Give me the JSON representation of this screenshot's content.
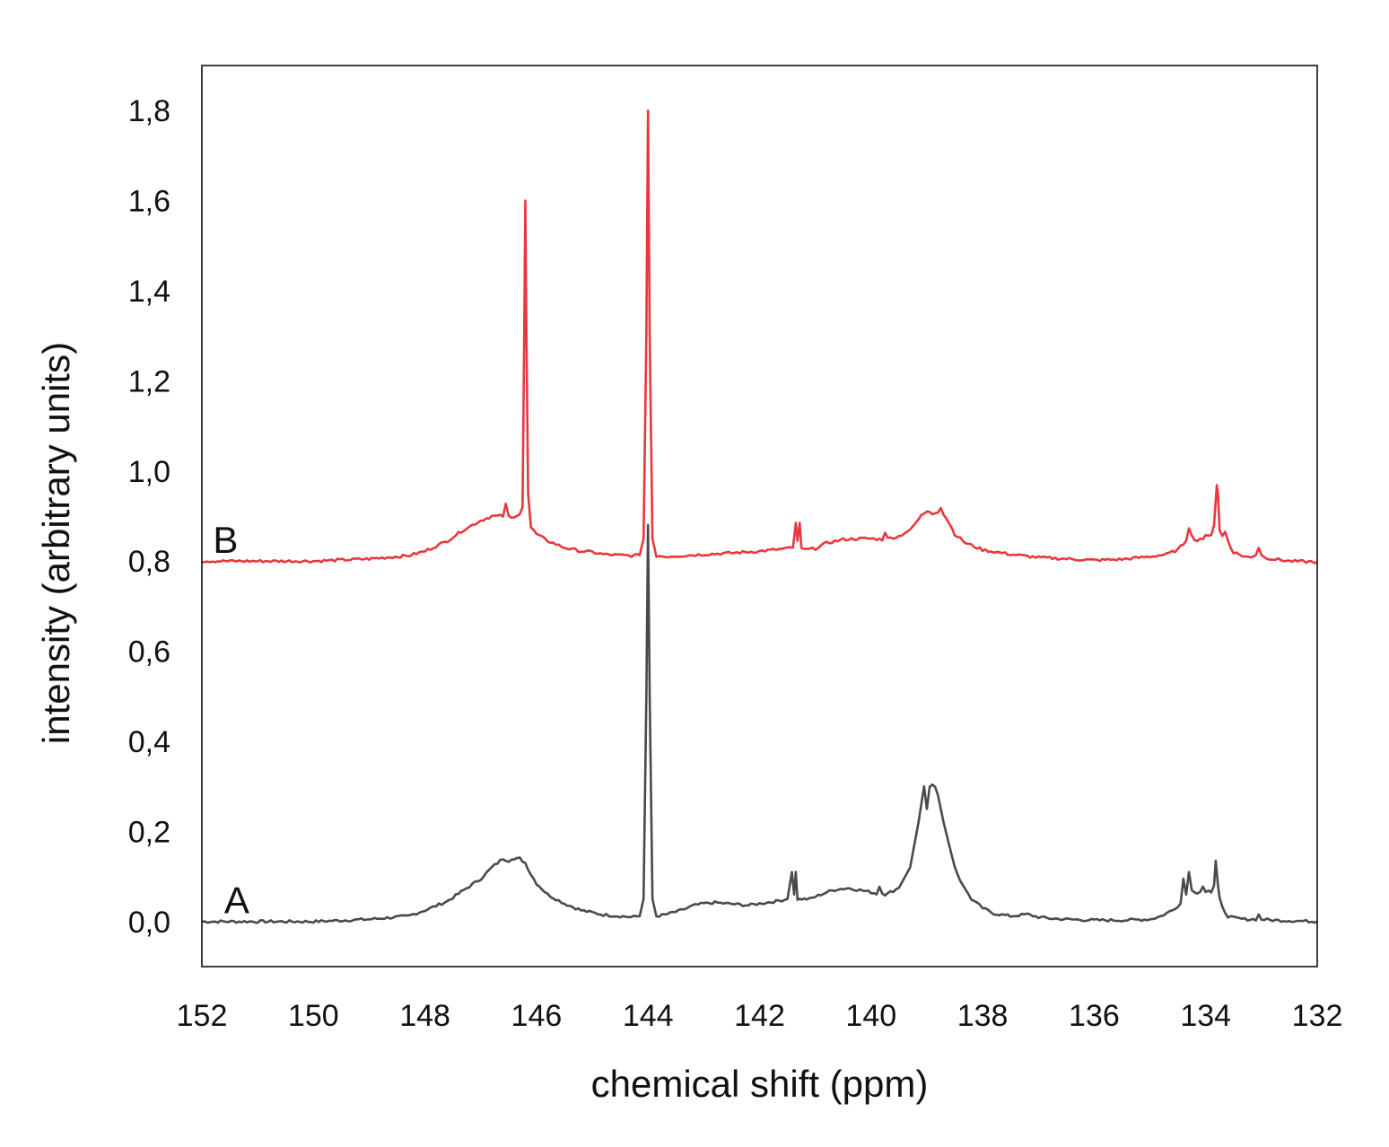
{
  "chart_data": {
    "type": "line",
    "title": "",
    "xlabel": "chemical shift (ppm)",
    "ylabel": "intensity (arbitrary units)",
    "xlim": [
      152,
      132
    ],
    "ylim": [
      -0.1,
      1.9
    ],
    "x_reversed": true,
    "x_ticks": [
      152,
      150,
      148,
      146,
      144,
      142,
      140,
      138,
      136,
      134,
      132
    ],
    "x_tick_labels": [
      "152",
      "150",
      "148",
      "146",
      "144",
      "142",
      "140",
      "138",
      "136",
      "134",
      "132"
    ],
    "y_ticks": [
      0.0,
      0.2,
      0.4,
      0.6,
      0.8,
      1.0,
      1.2,
      1.4,
      1.6,
      1.8
    ],
    "y_tick_labels": [
      "0,0",
      "0,2",
      "0,4",
      "0,6",
      "0,8",
      "1,0",
      "1,2",
      "1,4",
      "1,6",
      "1,8"
    ],
    "grid": false,
    "legend": "none",
    "series": [
      {
        "label_text": "A",
        "label_x": 151.6,
        "label_y": 0.03,
        "color": "#4a4a4a",
        "x": [
          152.0,
          151.0,
          150.0,
          149.0,
          148.3,
          148.0,
          147.6,
          147.3,
          147.0,
          146.8,
          146.6,
          146.5,
          146.45,
          146.4,
          146.3,
          146.2,
          146.1,
          146.0,
          145.8,
          145.5,
          145.2,
          145.0,
          144.8,
          144.5,
          144.3,
          144.15,
          144.08,
          144.03,
          144.0,
          143.97,
          143.92,
          143.85,
          143.7,
          143.4,
          143.2,
          143.0,
          142.8,
          142.6,
          142.4,
          142.2,
          142.0,
          141.7,
          141.5,
          141.42,
          141.38,
          141.35,
          141.32,
          141.28,
          141.2,
          141.1,
          141.0,
          140.8,
          140.6,
          140.4,
          140.2,
          140.0,
          139.9,
          139.85,
          139.8,
          139.75,
          139.7,
          139.5,
          139.3,
          139.15,
          139.05,
          139.0,
          138.95,
          138.9,
          138.85,
          138.8,
          138.7,
          138.6,
          138.5,
          138.4,
          138.2,
          138.0,
          137.8,
          137.5,
          137.2,
          137.0,
          136.8,
          136.5,
          136.0,
          135.5,
          135.0,
          134.8,
          134.6,
          134.45,
          134.4,
          134.35,
          134.3,
          134.25,
          134.2,
          134.1,
          134.05,
          134.0,
          133.95,
          133.9,
          133.85,
          133.82,
          133.78,
          133.75,
          133.7,
          133.6,
          133.5,
          133.3,
          133.1,
          133.05,
          133.0,
          132.8,
          132.5,
          132.0
        ],
        "y": [
          0.0,
          0.0,
          0.0,
          0.005,
          0.012,
          0.025,
          0.045,
          0.07,
          0.095,
          0.12,
          0.14,
          0.135,
          0.14,
          0.138,
          0.14,
          0.13,
          0.105,
          0.085,
          0.06,
          0.04,
          0.025,
          0.02,
          0.015,
          0.012,
          0.01,
          0.012,
          0.05,
          0.5,
          0.88,
          0.5,
          0.05,
          0.012,
          0.015,
          0.025,
          0.035,
          0.04,
          0.042,
          0.04,
          0.038,
          0.036,
          0.04,
          0.045,
          0.05,
          0.11,
          0.06,
          0.11,
          0.05,
          0.05,
          0.05,
          0.05,
          0.055,
          0.065,
          0.072,
          0.074,
          0.07,
          0.065,
          0.062,
          0.078,
          0.065,
          0.06,
          0.062,
          0.075,
          0.12,
          0.22,
          0.3,
          0.25,
          0.3,
          0.305,
          0.3,
          0.28,
          0.22,
          0.17,
          0.12,
          0.09,
          0.05,
          0.03,
          0.018,
          0.012,
          0.016,
          0.01,
          0.007,
          0.005,
          0.003,
          0.003,
          0.005,
          0.012,
          0.025,
          0.04,
          0.095,
          0.06,
          0.11,
          0.07,
          0.065,
          0.065,
          0.08,
          0.068,
          0.07,
          0.065,
          0.08,
          0.135,
          0.08,
          0.05,
          0.03,
          0.012,
          0.008,
          0.005,
          0.005,
          0.015,
          0.005,
          0.003,
          0.002,
          0.0
        ]
      },
      {
        "label_text": "B",
        "label_x": 151.8,
        "label_y": 0.83,
        "color": "#e8383d",
        "x": [
          152.0,
          151.0,
          150.0,
          149.0,
          148.3,
          148.0,
          147.6,
          147.3,
          147.0,
          146.8,
          146.6,
          146.55,
          146.5,
          146.45,
          146.4,
          146.3,
          146.25,
          146.22,
          146.2,
          146.18,
          146.15,
          146.1,
          146.0,
          145.8,
          145.5,
          145.2,
          145.0,
          144.8,
          144.5,
          144.3,
          144.15,
          144.08,
          144.03,
          144.0,
          143.97,
          143.92,
          143.85,
          143.7,
          143.4,
          143.0,
          142.5,
          142.0,
          141.5,
          141.4,
          141.35,
          141.32,
          141.28,
          141.25,
          141.2,
          141.0,
          140.8,
          140.5,
          140.2,
          140.0,
          139.8,
          139.75,
          139.7,
          139.5,
          139.3,
          139.1,
          139.0,
          138.9,
          138.8,
          138.75,
          138.7,
          138.6,
          138.5,
          138.3,
          138.0,
          137.5,
          137.0,
          136.5,
          136.0,
          135.5,
          135.0,
          134.7,
          134.5,
          134.35,
          134.3,
          134.25,
          134.2,
          134.1,
          134.05,
          134.0,
          133.95,
          133.9,
          133.85,
          133.8,
          133.78,
          133.75,
          133.7,
          133.65,
          133.6,
          133.55,
          133.5,
          133.3,
          133.2,
          133.1,
          133.05,
          133.0,
          132.95,
          132.8,
          132.5,
          132.0
        ],
        "y": [
          0.8,
          0.8,
          0.8,
          0.805,
          0.812,
          0.822,
          0.845,
          0.87,
          0.89,
          0.9,
          0.9,
          0.925,
          0.9,
          0.895,
          0.9,
          0.905,
          0.92,
          1.3,
          1.6,
          1.3,
          0.95,
          0.875,
          0.86,
          0.845,
          0.83,
          0.822,
          0.82,
          0.815,
          0.813,
          0.812,
          0.813,
          0.85,
          1.3,
          1.8,
          1.3,
          0.85,
          0.812,
          0.81,
          0.812,
          0.815,
          0.818,
          0.822,
          0.828,
          0.83,
          0.885,
          0.845,
          0.885,
          0.83,
          0.825,
          0.828,
          0.84,
          0.848,
          0.85,
          0.85,
          0.848,
          0.865,
          0.85,
          0.855,
          0.87,
          0.9,
          0.91,
          0.905,
          0.91,
          0.92,
          0.905,
          0.885,
          0.86,
          0.84,
          0.825,
          0.815,
          0.808,
          0.805,
          0.802,
          0.804,
          0.81,
          0.815,
          0.825,
          0.845,
          0.875,
          0.86,
          0.845,
          0.85,
          0.85,
          0.855,
          0.855,
          0.86,
          0.88,
          0.97,
          0.95,
          0.87,
          0.855,
          0.865,
          0.845,
          0.83,
          0.82,
          0.81,
          0.808,
          0.815,
          0.83,
          0.815,
          0.808,
          0.805,
          0.8,
          0.798
        ]
      }
    ]
  }
}
